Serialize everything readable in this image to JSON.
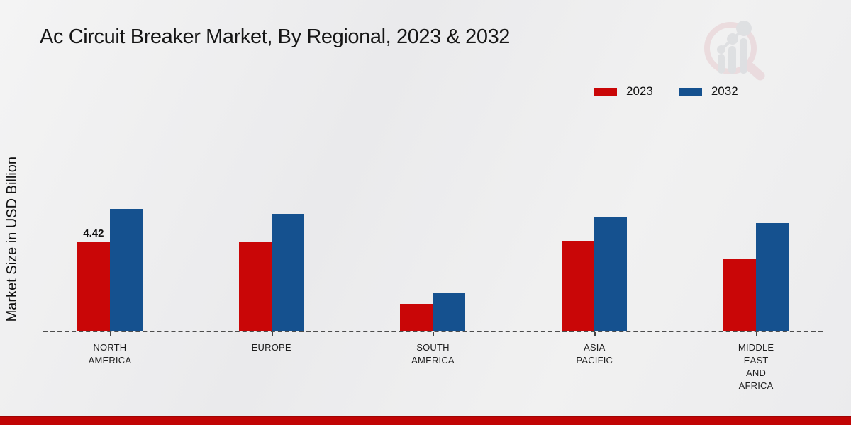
{
  "title": "Ac Circuit Breaker Market, By Regional, 2023 & 2032",
  "ylabel": "Market Size in USD Billion",
  "watermark_icon": "market-research-magnifier-logo",
  "footer": {
    "strip_color": "#c10404"
  },
  "chart_data": {
    "type": "bar",
    "title": "Ac Circuit Breaker Market, By Regional, 2023 & 2032",
    "xlabel": "",
    "ylabel": "Market Size in USD Billion",
    "ylim": [
      0,
      7
    ],
    "grid": false,
    "legend_position": "top-right",
    "baseline_style": "dashed",
    "categories": [
      "NORTH AMERICA",
      "EUROPE",
      "SOUTH AMERICA",
      "ASIA PACIFIC",
      "MIDDLE EAST AND AFRICA"
    ],
    "category_label_lines": [
      [
        "NORTH",
        "AMERICA"
      ],
      [
        "EUROPE"
      ],
      [
        "SOUTH",
        "AMERICA"
      ],
      [
        "ASIA",
        "PACIFIC"
      ],
      [
        "MIDDLE",
        "EAST",
        "AND",
        "AFRICA"
      ]
    ],
    "series": [
      {
        "name": "2023",
        "color": "#c90607",
        "values": [
          4.42,
          4.45,
          1.37,
          4.49,
          3.58
        ]
      },
      {
        "name": "2032",
        "color": "#15518f",
        "values": [
          6.07,
          5.82,
          1.93,
          5.65,
          5.37
        ]
      }
    ],
    "bar_labels": [
      {
        "series_index": 0,
        "category_index": 0,
        "text": "4.42"
      }
    ]
  }
}
